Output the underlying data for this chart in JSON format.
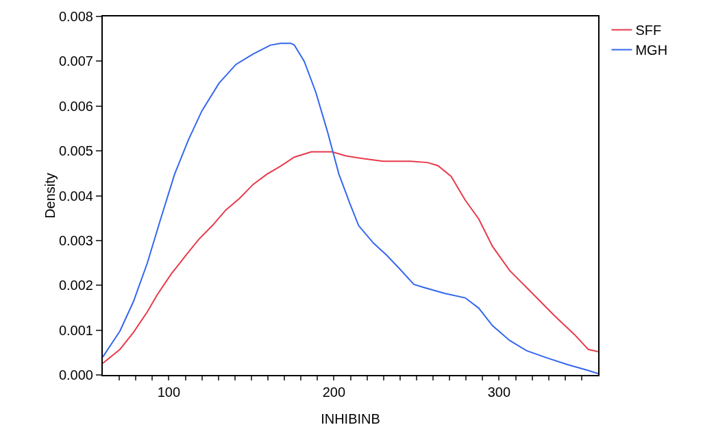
{
  "chart_data": {
    "type": "line",
    "xlabel": "INHIBINB",
    "ylabel": "Density",
    "xlim": [
      60,
      360
    ],
    "ylim": [
      0,
      0.008
    ],
    "xticks": [
      {
        "value": 70,
        "label": null
      },
      {
        "value": 80,
        "label": null
      },
      {
        "value": 90,
        "label": null
      },
      100,
      {
        "value": 110,
        "label": null
      },
      {
        "value": 120,
        "label": null
      },
      {
        "value": 130,
        "label": null
      },
      {
        "value": 140,
        "label": null
      },
      {
        "value": 150,
        "label": null
      },
      {
        "value": 160,
        "label": null
      },
      {
        "value": 170,
        "label": null
      },
      {
        "value": 180,
        "label": null
      },
      {
        "value": 190,
        "label": null
      },
      200,
      {
        "value": 210,
        "label": null
      },
      {
        "value": 220,
        "label": null
      },
      {
        "value": 230,
        "label": null
      },
      {
        "value": 240,
        "label": null
      },
      {
        "value": 250,
        "label": null
      },
      {
        "value": 260,
        "label": null
      },
      {
        "value": 270,
        "label": null
      },
      {
        "value": 280,
        "label": null
      },
      {
        "value": 290,
        "label": null
      },
      300,
      {
        "value": 310,
        "label": null
      },
      {
        "value": 320,
        "label": null
      },
      {
        "value": 330,
        "label": null
      },
      {
        "value": 340,
        "label": null
      },
      {
        "value": 350,
        "label": null
      }
    ],
    "yticks": [
      {
        "value": 0,
        "label": "0.000"
      },
      0.001,
      0.002,
      0.003,
      0.004,
      0.005,
      0.006,
      0.007,
      0.008
    ],
    "grid": false,
    "legend": "top right",
    "marker": "none",
    "line_style": "solid",
    "series": [
      {
        "name": "SFF",
        "color": "#e8394a",
        "x": [
          60,
          70.4,
          78.6,
          87,
          93,
          101.4,
          109.7,
          118,
          126.3,
          134.5,
          142.8,
          151,
          159.4,
          167.7,
          176,
          186.3,
          198.8,
          207,
          217.3,
          229.8,
          246.3,
          256.7,
          263,
          271,
          279.5,
          287.7,
          296,
          306.4,
          316.7,
          325,
          333.3,
          345.7,
          354,
          360
        ],
        "values": [
          0.00026,
          0.00057,
          0.00095,
          0.00141,
          0.00179,
          0.00225,
          0.00264,
          0.00302,
          0.00333,
          0.00368,
          0.00394,
          0.00425,
          0.00448,
          0.00466,
          0.00486,
          0.00498,
          0.00498,
          0.00489,
          0.00483,
          0.00477,
          0.00477,
          0.00474,
          0.00467,
          0.00443,
          0.0039,
          0.00348,
          0.00287,
          0.00233,
          0.00195,
          0.00164,
          0.00133,
          0.0009,
          0.00057,
          0.00052
        ]
      },
      {
        "name": "MGH",
        "color": "#3366ee",
        "x": [
          60,
          70.4,
          78.6,
          87,
          95.2,
          103.5,
          111.8,
          120,
          130.4,
          140.7,
          151,
          161.5,
          167.7,
          173.9,
          176,
          182,
          189,
          196,
          203,
          210,
          215,
          224,
          232,
          240,
          248.4,
          254.6,
          267,
          279.5,
          287.7,
          296,
          306.4,
          316.7,
          329,
          341.6,
          354,
          360
        ],
        "values": [
          0.0004,
          0.00098,
          0.00164,
          0.0025,
          0.0035,
          0.00448,
          0.00524,
          0.00589,
          0.00651,
          0.00693,
          0.00716,
          0.00736,
          0.0074,
          0.0074,
          0.00736,
          0.007,
          0.00631,
          0.00544,
          0.00448,
          0.00379,
          0.00333,
          0.00294,
          0.00267,
          0.00236,
          0.00202,
          0.00195,
          0.00182,
          0.00172,
          0.00149,
          0.0011,
          0.00077,
          0.00054,
          0.00038,
          0.00023,
          0.0001,
          3e-05
        ]
      }
    ]
  }
}
